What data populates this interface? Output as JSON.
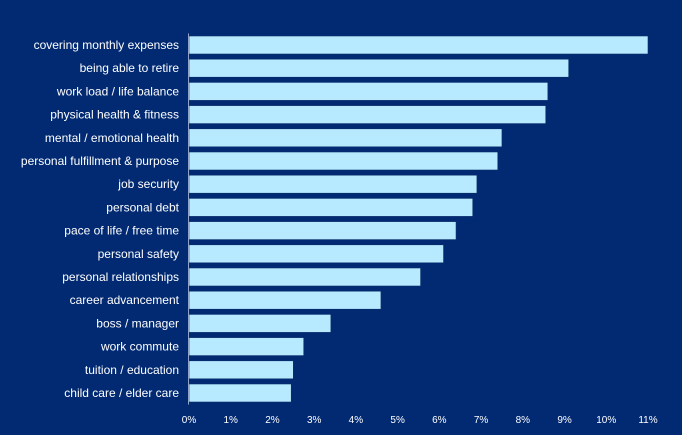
{
  "chart_data": {
    "type": "bar",
    "orientation": "horizontal",
    "title": "",
    "xlabel": "",
    "ylabel": "",
    "xlim": [
      0,
      11
    ],
    "tick_values": [
      0,
      1,
      2,
      3,
      4,
      5,
      6,
      7,
      8,
      9,
      10,
      11
    ],
    "tick_labels": [
      "0%",
      "1%",
      "2%",
      "3%",
      "4%",
      "5%",
      "6%",
      "7%",
      "8%",
      "9%",
      "10%",
      "11%"
    ],
    "categories": [
      "covering monthly expenses",
      "being able to retire",
      "work load / life balance",
      "physical health & fitness",
      "mental / emotional health",
      "personal fulfillment & purpose",
      "job security",
      "personal debt",
      "pace of life / free time",
      "personal safety",
      "personal relationships",
      "career advancement",
      "boss / manager",
      "work commute",
      "tuition / education",
      "child care / elder care"
    ],
    "values": [
      11.0,
      9.1,
      8.6,
      8.55,
      7.5,
      7.4,
      6.9,
      6.8,
      6.4,
      6.1,
      5.55,
      4.6,
      3.4,
      2.75,
      2.5,
      2.45
    ],
    "grid": false,
    "legend": "none"
  },
  "colors": {
    "background": "#022a73",
    "bar": "#b8eaff",
    "text": "#ffffff"
  }
}
